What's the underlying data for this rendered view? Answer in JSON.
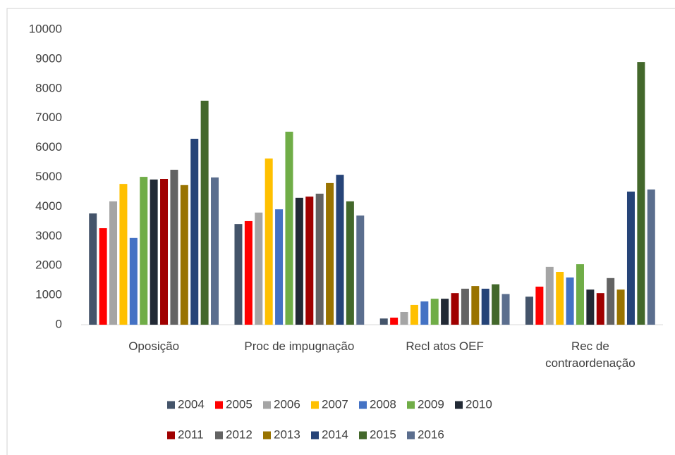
{
  "chart_data": {
    "type": "bar",
    "categories": [
      "Oposição",
      "Proc de impugnação",
      "Recl atos OEF",
      "Rec de contraordenação"
    ],
    "series": [
      {
        "name": "2004",
        "color": "#44546a",
        "values": [
          3770,
          3410,
          210,
          950
        ]
      },
      {
        "name": "2005",
        "color": "#ff0000",
        "values": [
          3270,
          3510,
          240,
          1290
        ]
      },
      {
        "name": "2006",
        "color": "#a5a5a5",
        "values": [
          4180,
          3800,
          430,
          1960
        ]
      },
      {
        "name": "2007",
        "color": "#ffc000",
        "values": [
          4770,
          5630,
          670,
          1790
        ]
      },
      {
        "name": "2008",
        "color": "#4472c4",
        "values": [
          2940,
          3910,
          790,
          1600
        ]
      },
      {
        "name": "2009",
        "color": "#70ad47",
        "values": [
          5010,
          6540,
          880,
          2050
        ]
      },
      {
        "name": "2010",
        "color": "#222a35",
        "values": [
          4920,
          4300,
          880,
          1190
        ]
      },
      {
        "name": "2011",
        "color": "#a00000",
        "values": [
          4940,
          4340,
          1070,
          1070
        ]
      },
      {
        "name": "2012",
        "color": "#636363",
        "values": [
          5250,
          4440,
          1220,
          1580
        ]
      },
      {
        "name": "2013",
        "color": "#997300",
        "values": [
          4730,
          4800,
          1310,
          1190
        ]
      },
      {
        "name": "2014",
        "color": "#264478",
        "values": [
          6300,
          5080,
          1220,
          4510
        ]
      },
      {
        "name": "2015",
        "color": "#43682b",
        "values": [
          7590,
          4180,
          1370,
          8900
        ]
      },
      {
        "name": "2016",
        "color": "#5b6e8e",
        "values": [
          4990,
          3700,
          1040,
          4580
        ]
      }
    ],
    "ylim": [
      0,
      10000
    ],
    "yticks": [
      0,
      1000,
      2000,
      3000,
      4000,
      5000,
      6000,
      7000,
      8000,
      9000,
      10000
    ],
    "grid": false,
    "legend": "bottom"
  }
}
